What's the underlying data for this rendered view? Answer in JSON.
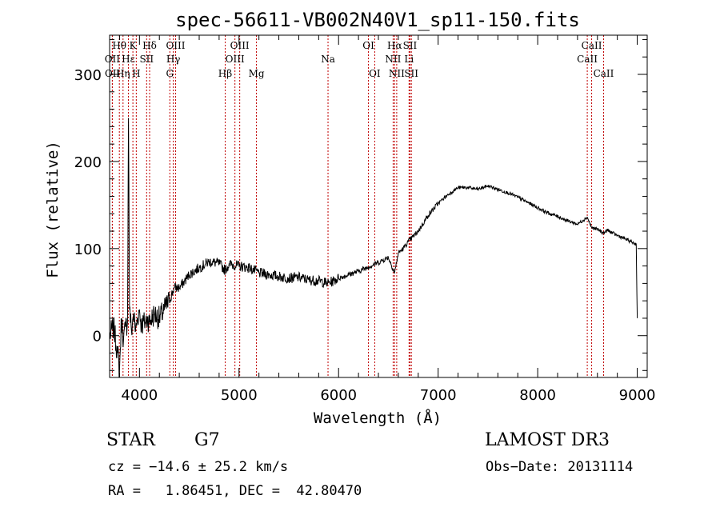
{
  "chart_data": {
    "type": "line",
    "title": "spec-56611-VB002N40V1_sp11-150.fits",
    "xlabel": "Wavelength (Å)",
    "ylabel": "Flux (relative)",
    "xlim": [
      3700,
      9100
    ],
    "ylim": [
      -48,
      345
    ],
    "xticks": [
      4000,
      5000,
      6000,
      7000,
      8000,
      9000
    ],
    "yticks": [
      0,
      100,
      200,
      300
    ],
    "series": [
      {
        "name": "spectrum",
        "x": [
          3700,
          3740,
          3780,
          3800,
          3820,
          3840,
          3860,
          3880,
          3890,
          3900,
          3920,
          3940,
          3960,
          3980,
          4000,
          4020,
          4050,
          4080,
          4100,
          4150,
          4200,
          4250,
          4300,
          4350,
          4400,
          4450,
          4500,
          4600,
          4700,
          4800,
          4861,
          4900,
          5000,
          5100,
          5200,
          5300,
          5400,
          5500,
          5600,
          5700,
          5800,
          5890,
          5950,
          6000,
          6100,
          6200,
          6300,
          6400,
          6500,
          6563,
          6600,
          6650,
          6700,
          6800,
          6900,
          7000,
          7100,
          7200,
          7300,
          7400,
          7500,
          7600,
          7700,
          7800,
          7900,
          8000,
          8100,
          8200,
          8300,
          8400,
          8498,
          8542,
          8600,
          8662,
          8700,
          8800,
          8900,
          8990,
          9000
        ],
        "values": [
          0,
          10,
          -20,
          -40,
          20,
          -5,
          10,
          15,
          250,
          30,
          5,
          25,
          5,
          20,
          30,
          12,
          15,
          20,
          15,
          25,
          20,
          30,
          40,
          55,
          55,
          62,
          70,
          78,
          85,
          83,
          75,
          82,
          80,
          78,
          72,
          70,
          68,
          66,
          67,
          64,
          63,
          60,
          63,
          66,
          70,
          74,
          79,
          84,
          90,
          72,
          95,
          100,
          108,
          120,
          138,
          152,
          162,
          170,
          170,
          168,
          172,
          168,
          164,
          159,
          153,
          147,
          141,
          137,
          132,
          128,
          136,
          124,
          122,
          118,
          121,
          115,
          110,
          105,
          20
        ]
      }
    ],
    "spectral_lines": [
      {
        "label": "Hθ",
        "wl": 3798,
        "row": 1
      },
      {
        "label": "OII",
        "wl": 3727,
        "row": 2
      },
      {
        "label": "OII",
        "wl": 3729,
        "row": 3
      },
      {
        "label": "Hη",
        "wl": 3835,
        "row": 3
      },
      {
        "label": "Hε",
        "wl": 3889,
        "row": 2
      },
      {
        "label": "K",
        "wl": 3934,
        "row": 1
      },
      {
        "label": "H",
        "wl": 3968,
        "row": 3
      },
      {
        "label": "SII",
        "wl": 4072,
        "row": 2
      },
      {
        "label": "Hδ",
        "wl": 4102,
        "row": 1
      },
      {
        "label": "OIII",
        "wl": 4363,
        "row": 1
      },
      {
        "label": "Hγ",
        "wl": 4340,
        "row": 2
      },
      {
        "label": "G",
        "wl": 4305,
        "row": 3
      },
      {
        "label": "Hβ",
        "wl": 4861,
        "row": 3
      },
      {
        "label": "OIII",
        "wl": 5007,
        "row": 1
      },
      {
        "label": "OIII",
        "wl": 4959,
        "row": 2
      },
      {
        "label": "Mg",
        "wl": 5175,
        "row": 3
      },
      {
        "label": "Na",
        "wl": 5894,
        "row": 2
      },
      {
        "label": "OI",
        "wl": 6300,
        "row": 1
      },
      {
        "label": "OI",
        "wl": 6363,
        "row": 3
      },
      {
        "label": "Hα",
        "wl": 6563,
        "row": 1
      },
      {
        "label": "NII",
        "wl": 6548,
        "row": 2
      },
      {
        "label": "NII",
        "wl": 6584,
        "row": 3
      },
      {
        "label": "SII",
        "wl": 6717,
        "row": 1
      },
      {
        "label": "Li",
        "wl": 6708,
        "row": 2
      },
      {
        "label": "SII",
        "wl": 6731,
        "row": 3
      },
      {
        "label": "CaII",
        "wl": 8542,
        "row": 1
      },
      {
        "label": "CaII",
        "wl": 8498,
        "row": 2
      },
      {
        "label": "CaII",
        "wl": 8662,
        "row": 3
      }
    ]
  },
  "info": {
    "object_class": "STAR",
    "subclass": "G7",
    "survey": "LAMOST DR3",
    "redshift": "cz = −14.6 ± 25.2 km/s",
    "obs_date": "Obs−Date: 20131114",
    "coords": "RA =   1.86451, DEC =  42.80470"
  }
}
